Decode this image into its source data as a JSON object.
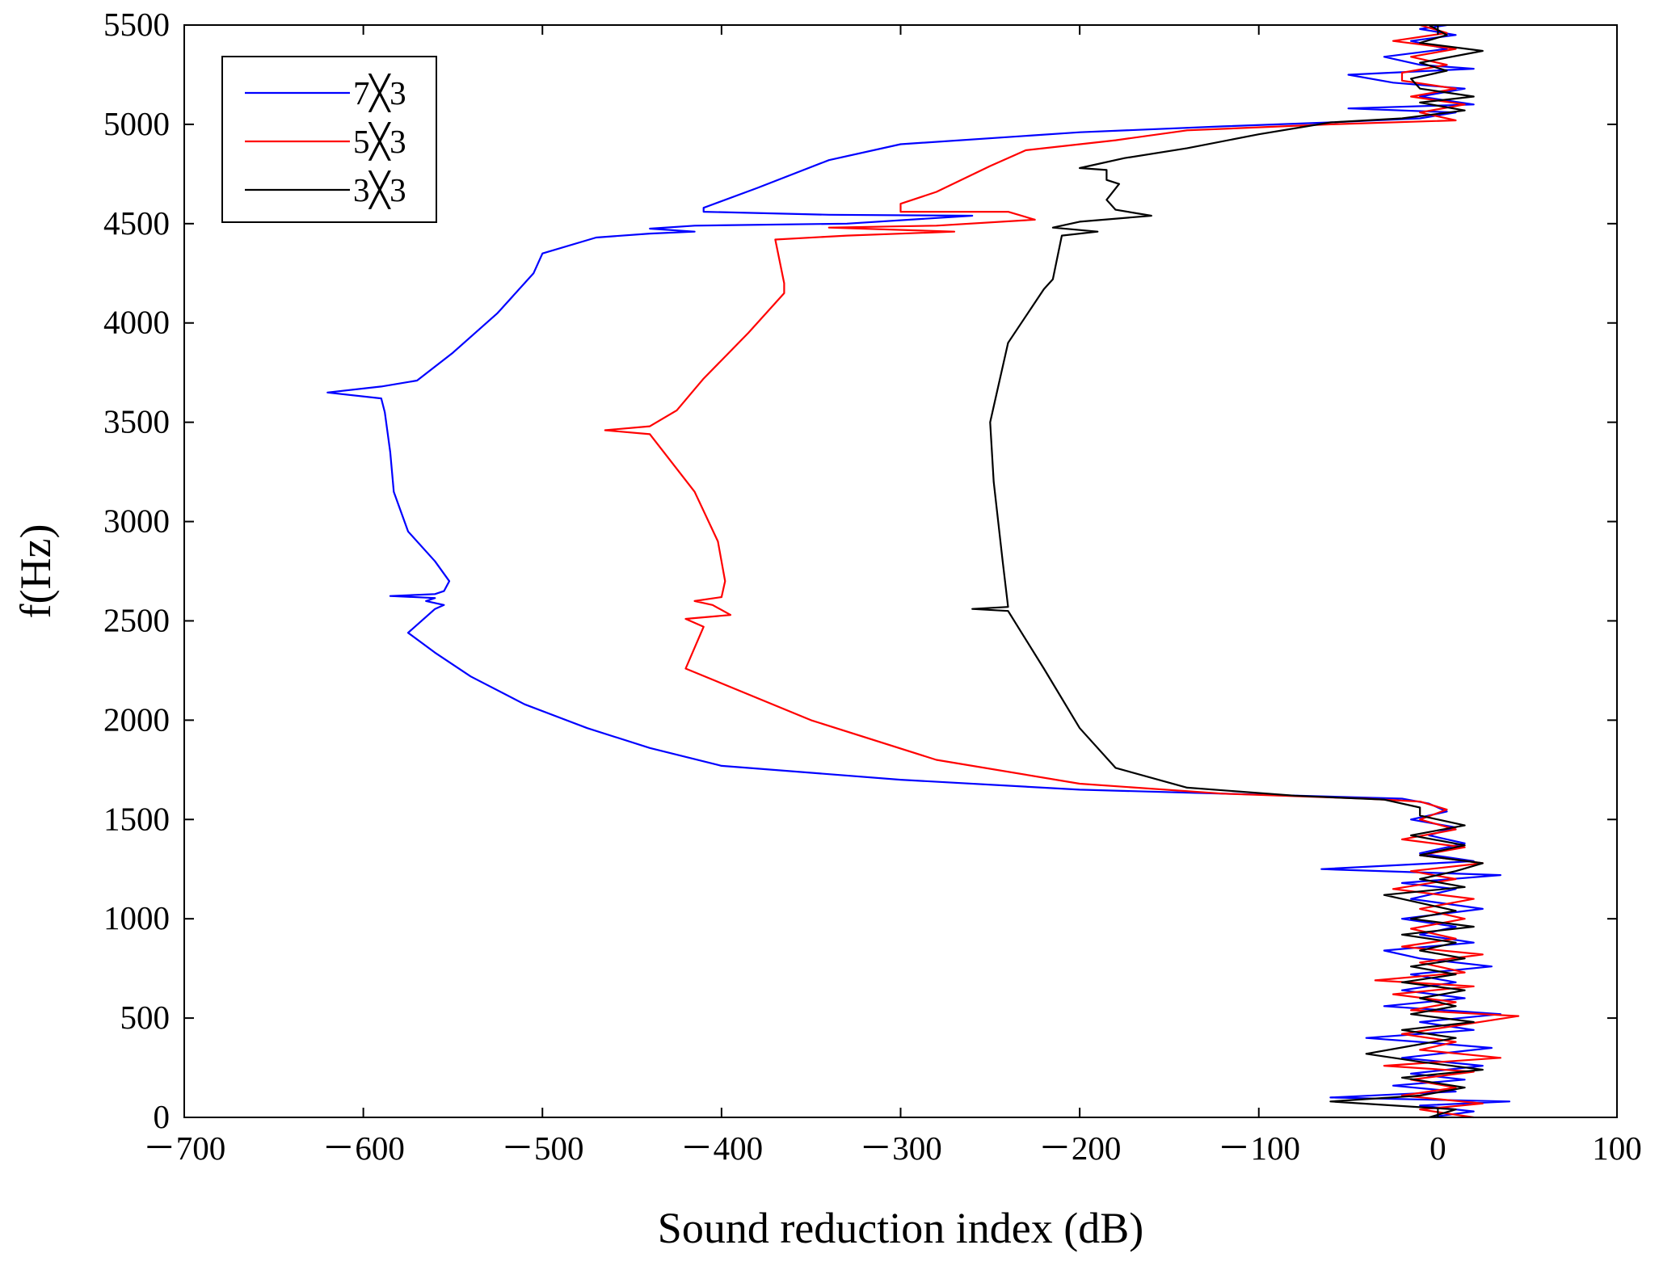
{
  "chart_data": {
    "type": "line",
    "orientation": "horizontal",
    "title": "",
    "xlabel": "Sound reduction index (dB)",
    "ylabel": "f(Hz)",
    "xlim": [
      -700,
      100
    ],
    "ylim": [
      0,
      5500
    ],
    "xticks": [
      -700,
      -600,
      -500,
      -400,
      -300,
      -200,
      -100,
      0,
      100
    ],
    "yticks": [
      0,
      500,
      1000,
      1500,
      2000,
      2500,
      3000,
      3500,
      4000,
      4500,
      5000,
      5500
    ],
    "xtick_labels": [
      "－700",
      "－600",
      "－500",
      "－400",
      "－300",
      "－200",
      "－100",
      "0",
      "100"
    ],
    "ytick_labels": [
      "0",
      "500",
      "1000",
      "1500",
      "2000",
      "2500",
      "3000",
      "3500",
      "4000",
      "4500",
      "5000",
      "5500"
    ],
    "grid": false,
    "legend_position": "top-left",
    "series": [
      {
        "name": "7×3",
        "label": "7╳3",
        "color": "#0000ff",
        "points": [
          [
            -5,
            0
          ],
          [
            20,
            30
          ],
          [
            -10,
            60
          ],
          [
            40,
            80
          ],
          [
            -60,
            100
          ],
          [
            10,
            130
          ],
          [
            -25,
            160
          ],
          [
            15,
            190
          ],
          [
            -15,
            220
          ],
          [
            25,
            260
          ],
          [
            -20,
            300
          ],
          [
            30,
            350
          ],
          [
            -10,
            380
          ],
          [
            -40,
            400
          ],
          [
            20,
            440
          ],
          [
            -10,
            480
          ],
          [
            35,
            520
          ],
          [
            -30,
            560
          ],
          [
            15,
            600
          ],
          [
            -20,
            640
          ],
          [
            10,
            680
          ],
          [
            -15,
            720
          ],
          [
            30,
            760
          ],
          [
            -10,
            800
          ],
          [
            -30,
            840
          ],
          [
            20,
            880
          ],
          [
            -10,
            920
          ],
          [
            10,
            960
          ],
          [
            -20,
            1000
          ],
          [
            25,
            1050
          ],
          [
            -15,
            1100
          ],
          [
            10,
            1150
          ],
          [
            -20,
            1180
          ],
          [
            35,
            1220
          ],
          [
            -65,
            1250
          ],
          [
            20,
            1290
          ],
          [
            -10,
            1330
          ],
          [
            15,
            1380
          ],
          [
            -5,
            1420
          ],
          [
            10,
            1460
          ],
          [
            -15,
            1500
          ],
          [
            5,
            1540
          ],
          [
            -5,
            1580
          ],
          [
            -20,
            1605
          ],
          [
            -100,
            1625
          ],
          [
            -200,
            1650
          ],
          [
            -300,
            1700
          ],
          [
            -400,
            1770
          ],
          [
            -440,
            1860
          ],
          [
            -475,
            1960
          ],
          [
            -510,
            2080
          ],
          [
            -540,
            2220
          ],
          [
            -560,
            2340
          ],
          [
            -575,
            2440
          ],
          [
            -560,
            2560
          ],
          [
            -555,
            2580
          ],
          [
            -565,
            2600
          ],
          [
            -560,
            2615
          ],
          [
            -585,
            2625
          ],
          [
            -560,
            2635
          ],
          [
            -555,
            2650
          ],
          [
            -552,
            2700
          ],
          [
            -560,
            2800
          ],
          [
            -575,
            2950
          ],
          [
            -583,
            3150
          ],
          [
            -585,
            3350
          ],
          [
            -588,
            3550
          ],
          [
            -590,
            3620
          ],
          [
            -620,
            3650
          ],
          [
            -590,
            3680
          ],
          [
            -570,
            3710
          ],
          [
            -550,
            3850
          ],
          [
            -525,
            4050
          ],
          [
            -505,
            4250
          ],
          [
            -500,
            4350
          ],
          [
            -470,
            4430
          ],
          [
            -440,
            4450
          ],
          [
            -415,
            4460
          ],
          [
            -440,
            4475
          ],
          [
            -415,
            4490
          ],
          [
            -330,
            4500
          ],
          [
            -260,
            4540
          ],
          [
            -340,
            4545
          ],
          [
            -410,
            4560
          ],
          [
            -410,
            4580
          ],
          [
            -380,
            4680
          ],
          [
            -340,
            4820
          ],
          [
            -300,
            4900
          ],
          [
            -200,
            4960
          ],
          [
            -120,
            4990
          ],
          [
            -60,
            5010
          ],
          [
            -10,
            5030
          ],
          [
            10,
            5060
          ],
          [
            -50,
            5080
          ],
          [
            20,
            5100
          ],
          [
            -10,
            5140
          ],
          [
            15,
            5180
          ],
          [
            -25,
            5210
          ],
          [
            -50,
            5250
          ],
          [
            20,
            5280
          ],
          [
            -10,
            5300
          ],
          [
            -30,
            5340
          ],
          [
            5,
            5380
          ],
          [
            -15,
            5420
          ],
          [
            10,
            5450
          ],
          [
            -10,
            5480
          ],
          [
            5,
            5500
          ]
        ]
      },
      {
        "name": "5×3",
        "label": "5╳3",
        "color": "#ff0000",
        "points": [
          [
            20,
            0
          ],
          [
            -10,
            40
          ],
          [
            25,
            70
          ],
          [
            -20,
            110
          ],
          [
            10,
            150
          ],
          [
            -15,
            190
          ],
          [
            20,
            230
          ],
          [
            -30,
            260
          ],
          [
            35,
            300
          ],
          [
            -10,
            340
          ],
          [
            10,
            380
          ],
          [
            -20,
            420
          ],
          [
            45,
            510
          ],
          [
            -15,
            540
          ],
          [
            10,
            580
          ],
          [
            -25,
            620
          ],
          [
            20,
            660
          ],
          [
            -35,
            690
          ],
          [
            15,
            730
          ],
          [
            -10,
            780
          ],
          [
            25,
            820
          ],
          [
            -20,
            860
          ],
          [
            10,
            900
          ],
          [
            -15,
            950
          ],
          [
            15,
            1000
          ],
          [
            -10,
            1050
          ],
          [
            20,
            1100
          ],
          [
            -25,
            1150
          ],
          [
            10,
            1200
          ],
          [
            -15,
            1240
          ],
          [
            25,
            1280
          ],
          [
            -10,
            1320
          ],
          [
            15,
            1360
          ],
          [
            -20,
            1400
          ],
          [
            10,
            1450
          ],
          [
            -10,
            1500
          ],
          [
            5,
            1550
          ],
          [
            -10,
            1590
          ],
          [
            -40,
            1605
          ],
          [
            -120,
            1630
          ],
          [
            -200,
            1680
          ],
          [
            -280,
            1800
          ],
          [
            -350,
            2000
          ],
          [
            -420,
            2260
          ],
          [
            -410,
            2470
          ],
          [
            -420,
            2510
          ],
          [
            -395,
            2530
          ],
          [
            -405,
            2580
          ],
          [
            -415,
            2600
          ],
          [
            -400,
            2620
          ],
          [
            -398,
            2700
          ],
          [
            -402,
            2900
          ],
          [
            -415,
            3150
          ],
          [
            -440,
            3440
          ],
          [
            -465,
            3460
          ],
          [
            -440,
            3480
          ],
          [
            -425,
            3560
          ],
          [
            -410,
            3720
          ],
          [
            -385,
            3950
          ],
          [
            -365,
            4150
          ],
          [
            -365,
            4200
          ],
          [
            -370,
            4420
          ],
          [
            -330,
            4440
          ],
          [
            -270,
            4460
          ],
          [
            -340,
            4480
          ],
          [
            -280,
            4490
          ],
          [
            -225,
            4520
          ],
          [
            -240,
            4560
          ],
          [
            -300,
            4560
          ],
          [
            -300,
            4600
          ],
          [
            -280,
            4660
          ],
          [
            -250,
            4790
          ],
          [
            -230,
            4870
          ],
          [
            -180,
            4920
          ],
          [
            -140,
            4970
          ],
          [
            -60,
            5000
          ],
          [
            10,
            5020
          ],
          [
            -10,
            5060
          ],
          [
            15,
            5100
          ],
          [
            -15,
            5140
          ],
          [
            10,
            5180
          ],
          [
            -20,
            5220
          ],
          [
            -20,
            5260
          ],
          [
            5,
            5300
          ],
          [
            -15,
            5340
          ],
          [
            10,
            5380
          ],
          [
            -25,
            5420
          ],
          [
            5,
            5460
          ],
          [
            -10,
            5500
          ]
        ]
      },
      {
        "name": "3×3",
        "label": "3╳3",
        "color": "#000000",
        "points": [
          [
            -5,
            0
          ],
          [
            10,
            40
          ],
          [
            -60,
            80
          ],
          [
            -10,
            110
          ],
          [
            15,
            150
          ],
          [
            -20,
            200
          ],
          [
            25,
            240
          ],
          [
            -10,
            280
          ],
          [
            -40,
            320
          ],
          [
            -15,
            360
          ],
          [
            10,
            400
          ],
          [
            -20,
            440
          ],
          [
            20,
            480
          ],
          [
            -15,
            520
          ],
          [
            10,
            560
          ],
          [
            -10,
            600
          ],
          [
            15,
            640
          ],
          [
            -20,
            680
          ],
          [
            10,
            720
          ],
          [
            -15,
            760
          ],
          [
            15,
            800
          ],
          [
            -10,
            840
          ],
          [
            10,
            880
          ],
          [
            -20,
            920
          ],
          [
            20,
            960
          ],
          [
            -15,
            1000
          ],
          [
            10,
            1040
          ],
          [
            -30,
            1120
          ],
          [
            15,
            1160
          ],
          [
            -10,
            1200
          ],
          [
            10,
            1240
          ],
          [
            25,
            1280
          ],
          [
            -10,
            1320
          ],
          [
            15,
            1370
          ],
          [
            -15,
            1420
          ],
          [
            15,
            1470
          ],
          [
            -10,
            1520
          ],
          [
            -10,
            1560
          ],
          [
            -30,
            1600
          ],
          [
            -80,
            1620
          ],
          [
            -140,
            1660
          ],
          [
            -180,
            1760
          ],
          [
            -200,
            1960
          ],
          [
            -220,
            2260
          ],
          [
            -240,
            2550
          ],
          [
            -260,
            2560
          ],
          [
            -240,
            2570
          ],
          [
            -243,
            2800
          ],
          [
            -248,
            3200
          ],
          [
            -250,
            3500
          ],
          [
            -240,
            3900
          ],
          [
            -220,
            4170
          ],
          [
            -215,
            4220
          ],
          [
            -210,
            4440
          ],
          [
            -190,
            4460
          ],
          [
            -215,
            4480
          ],
          [
            -200,
            4510
          ],
          [
            -160,
            4540
          ],
          [
            -180,
            4570
          ],
          [
            -185,
            4620
          ],
          [
            -178,
            4700
          ],
          [
            -185,
            4720
          ],
          [
            -185,
            4770
          ],
          [
            -200,
            4780
          ],
          [
            -175,
            4830
          ],
          [
            -140,
            4880
          ],
          [
            -100,
            4950
          ],
          [
            -60,
            5010
          ],
          [
            -20,
            5030
          ],
          [
            15,
            5070
          ],
          [
            -10,
            5110
          ],
          [
            20,
            5140
          ],
          [
            -10,
            5180
          ],
          [
            -15,
            5230
          ],
          [
            5,
            5270
          ],
          [
            -10,
            5310
          ],
          [
            25,
            5370
          ],
          [
            -10,
            5410
          ],
          [
            5,
            5450
          ],
          [
            -5,
            5500
          ]
        ]
      }
    ]
  }
}
